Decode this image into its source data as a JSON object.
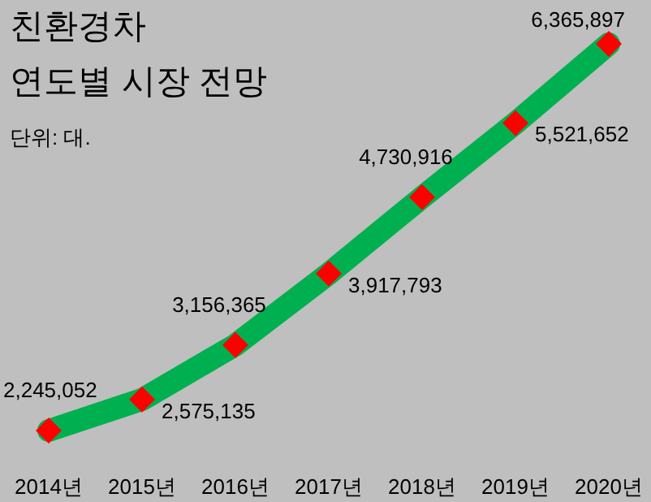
{
  "chart_data": {
    "type": "line",
    "title": "친환경차",
    "subtitle": "연도별 시장 전망",
    "annotations": [
      "단위: 대."
    ],
    "categories": [
      "2014년",
      "2015년",
      "2016년",
      "2017년",
      "2018년",
      "2019년",
      "2020년"
    ],
    "series": [
      {
        "color": "#00b050",
        "colors": [
          "#ff0000",
          "#ff0000",
          "#ff0000",
          "#ff0000",
          "#ff0000",
          "#ff0000",
          "#ff0000"
        ],
        "values": [
          2245052,
          2575135,
          3156365,
          3917793,
          4730916,
          5521652,
          6365897
        ],
        "value_labels": [
          "2,245,052",
          "2,575,135",
          "3,156,365",
          "3,917,793",
          "4,730,916",
          "5,521,652",
          "6,365,897"
        ]
      }
    ],
    "marker": "diamond"
  }
}
